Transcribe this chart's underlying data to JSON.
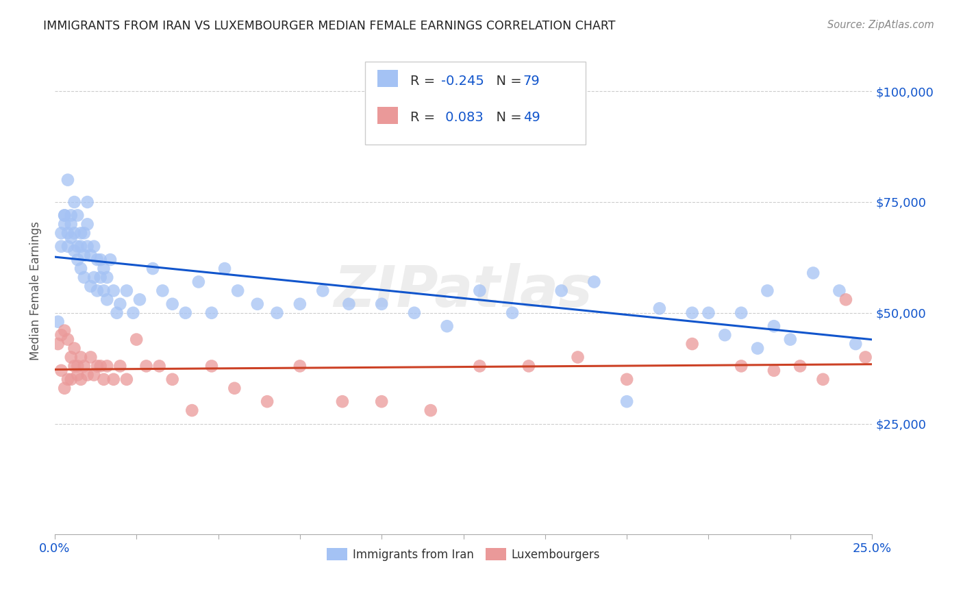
{
  "title": "IMMIGRANTS FROM IRAN VS LUXEMBOURGER MEDIAN FEMALE EARNINGS CORRELATION CHART",
  "source": "Source: ZipAtlas.com",
  "ylabel": "Median Female Earnings",
  "yticks": [
    25000,
    50000,
    75000,
    100000
  ],
  "ytick_labels": [
    "$25,000",
    "$50,000",
    "$75,000",
    "$100,000"
  ],
  "xlim": [
    0.0,
    0.25
  ],
  "ylim": [
    0,
    110000
  ],
  "legend_blue_label": "Immigrants from Iran",
  "legend_pink_label": "Luxembourgers",
  "blue_color": "#a4c2f4",
  "pink_color": "#ea9999",
  "blue_line_color": "#1155cc",
  "pink_line_color": "#cc4125",
  "tick_label_color": "#1155cc",
  "background_color": "#ffffff",
  "grid_color": "#cccccc",
  "blue_points_x": [
    0.001,
    0.002,
    0.002,
    0.003,
    0.003,
    0.003,
    0.004,
    0.004,
    0.004,
    0.005,
    0.005,
    0.005,
    0.006,
    0.006,
    0.006,
    0.007,
    0.007,
    0.007,
    0.008,
    0.008,
    0.008,
    0.009,
    0.009,
    0.009,
    0.01,
    0.01,
    0.01,
    0.011,
    0.011,
    0.012,
    0.012,
    0.013,
    0.013,
    0.014,
    0.014,
    0.015,
    0.015,
    0.016,
    0.016,
    0.017,
    0.018,
    0.019,
    0.02,
    0.022,
    0.024,
    0.026,
    0.03,
    0.033,
    0.036,
    0.04,
    0.044,
    0.048,
    0.052,
    0.056,
    0.062,
    0.068,
    0.075,
    0.082,
    0.09,
    0.1,
    0.11,
    0.12,
    0.13,
    0.14,
    0.155,
    0.165,
    0.175,
    0.185,
    0.195,
    0.2,
    0.205,
    0.21,
    0.215,
    0.218,
    0.22,
    0.225,
    0.232,
    0.24,
    0.245
  ],
  "blue_points_y": [
    48000,
    65000,
    68000,
    70000,
    72000,
    72000,
    68000,
    65000,
    80000,
    67000,
    70000,
    72000,
    75000,
    68000,
    64000,
    72000,
    65000,
    62000,
    68000,
    65000,
    60000,
    68000,
    63000,
    58000,
    75000,
    70000,
    65000,
    63000,
    56000,
    65000,
    58000,
    62000,
    55000,
    62000,
    58000,
    60000,
    55000,
    58000,
    53000,
    62000,
    55000,
    50000,
    52000,
    55000,
    50000,
    53000,
    60000,
    55000,
    52000,
    50000,
    57000,
    50000,
    60000,
    55000,
    52000,
    50000,
    52000,
    55000,
    52000,
    52000,
    50000,
    47000,
    55000,
    50000,
    55000,
    57000,
    30000,
    51000,
    50000,
    50000,
    45000,
    50000,
    42000,
    55000,
    47000,
    44000,
    59000,
    55000,
    43000
  ],
  "pink_points_x": [
    0.001,
    0.002,
    0.002,
    0.003,
    0.003,
    0.004,
    0.004,
    0.005,
    0.005,
    0.006,
    0.006,
    0.007,
    0.007,
    0.008,
    0.008,
    0.009,
    0.01,
    0.011,
    0.012,
    0.013,
    0.014,
    0.015,
    0.016,
    0.018,
    0.02,
    0.022,
    0.025,
    0.028,
    0.032,
    0.036,
    0.042,
    0.048,
    0.055,
    0.065,
    0.075,
    0.088,
    0.1,
    0.115,
    0.13,
    0.145,
    0.16,
    0.175,
    0.195,
    0.21,
    0.22,
    0.228,
    0.235,
    0.242,
    0.248
  ],
  "pink_points_y": [
    43000,
    45000,
    37000,
    33000,
    46000,
    35000,
    44000,
    40000,
    35000,
    38000,
    42000,
    38000,
    36000,
    40000,
    35000,
    38000,
    36000,
    40000,
    36000,
    38000,
    38000,
    35000,
    38000,
    35000,
    38000,
    35000,
    44000,
    38000,
    38000,
    35000,
    28000,
    38000,
    33000,
    30000,
    38000,
    30000,
    30000,
    28000,
    38000,
    38000,
    40000,
    35000,
    43000,
    38000,
    37000,
    38000,
    35000,
    53000,
    40000
  ]
}
